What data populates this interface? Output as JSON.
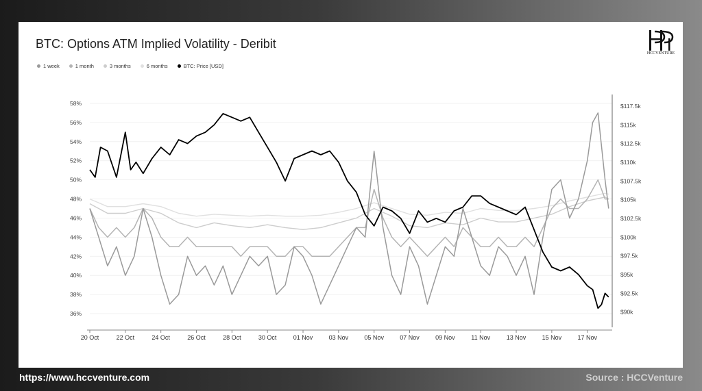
{
  "footer": {
    "url": "https://www.hccventure.com",
    "source": "Source : HCCVenture"
  },
  "logo": {
    "text": "HCCVENTURE"
  },
  "colors": {
    "background_left": "#1b1b1b",
    "background_right": "#8a8a8a",
    "card": "#ffffff",
    "one_week": "#9a9a9a",
    "one_month": "#b4b4b4",
    "three_months": "#cdcdcd",
    "six_months": "#e0e0e0",
    "price": "#000000"
  },
  "chart_data": {
    "type": "line",
    "title": "BTC: Options ATM Implied Volatility - Deribit",
    "legend": [
      "1 week",
      "1 month",
      "3 months",
      "6 months",
      "BTC: Price [USD]"
    ],
    "legend_position": "top-left",
    "grid": true,
    "x_ticks": [
      "20 Oct",
      "22 Oct",
      "24 Oct",
      "26 Oct",
      "28 Oct",
      "30 Oct",
      "01 Nov",
      "03 Nov",
      "05 Nov",
      "07 Nov",
      "09 Nov",
      "11 Nov",
      "13 Nov",
      "15 Nov",
      "17 Nov"
    ],
    "x_range": [
      0,
      29.4
    ],
    "y_left": {
      "ticks": [
        "58%",
        "56%",
        "54%",
        "52%",
        "50%",
        "48%",
        "46%",
        "44%",
        "42%",
        "40%",
        "38%",
        "36%"
      ],
      "range": [
        35,
        58.5
      ],
      "unit": "%"
    },
    "y_right": {
      "ticks": [
        "$117.5k",
        "$115k",
        "$112.5k",
        "$110k",
        "$107.5k",
        "$105k",
        "$102.5k",
        "$100k",
        "$97.5k",
        "$95k",
        "$92.5k",
        "$90k"
      ],
      "range": [
        88.5,
        118.5
      ],
      "unit": "k USD"
    },
    "series": [
      {
        "name": "1 week",
        "axis": "left",
        "x": [
          0,
          0.5,
          1,
          1.5,
          2,
          2.5,
          3,
          3.5,
          4,
          4.5,
          5,
          5.5,
          6,
          6.5,
          7,
          7.5,
          8,
          8.5,
          9,
          9.5,
          10,
          10.5,
          11,
          11.5,
          12,
          12.5,
          13,
          13.5,
          14,
          14.5,
          15,
          15.5,
          16,
          16.5,
          17,
          17.5,
          18,
          18.5,
          19,
          19.5,
          20,
          20.5,
          21,
          21.5,
          22,
          22.5,
          23,
          23.5,
          24,
          24.5,
          25,
          25.5,
          26,
          26.5,
          27,
          27.5,
          28,
          28.3,
          28.6,
          29,
          29.2
        ],
        "values": [
          47,
          44,
          41,
          43,
          40,
          42,
          47,
          44,
          40,
          37,
          38,
          42,
          40,
          41,
          39,
          41,
          38,
          40,
          42,
          41,
          42,
          38,
          39,
          43,
          42,
          40,
          37,
          39,
          41,
          43,
          45,
          44,
          53,
          45,
          40,
          38,
          43,
          41,
          37,
          40,
          43,
          42,
          47,
          44,
          41,
          40,
          43,
          42,
          40,
          42,
          38,
          44,
          49,
          50,
          46,
          48,
          52,
          56,
          57,
          50,
          47
        ]
      },
      {
        "name": "1 month",
        "axis": "left",
        "x": [
          0,
          0.5,
          1,
          1.5,
          2,
          2.5,
          3,
          3.5,
          4,
          4.5,
          5,
          5.5,
          6,
          6.5,
          7,
          7.5,
          8,
          8.5,
          9,
          9.5,
          10,
          10.5,
          11,
          11.5,
          12,
          12.5,
          13,
          13.5,
          14,
          14.5,
          15,
          15.5,
          16,
          16.5,
          17,
          17.5,
          18,
          18.5,
          19,
          19.5,
          20,
          20.5,
          21,
          21.5,
          22,
          22.5,
          23,
          23.5,
          24,
          24.5,
          25,
          25.5,
          26,
          26.5,
          27,
          27.5,
          28,
          28.3,
          28.6,
          29,
          29.2
        ],
        "values": [
          47,
          45,
          44,
          45,
          44,
          45,
          47,
          46,
          44,
          43,
          43,
          44,
          43,
          43,
          43,
          43,
          43,
          42,
          43,
          43,
          43,
          42,
          42,
          43,
          43,
          42,
          42,
          42,
          43,
          44,
          45,
          45,
          49,
          46,
          44,
          43,
          44,
          43,
          42,
          43,
          44,
          43,
          45,
          44,
          43,
          43,
          44,
          43,
          43,
          44,
          43,
          45,
          47,
          48,
          47,
          47,
          48,
          49,
          50,
          48,
          48
        ]
      },
      {
        "name": "3 months",
        "axis": "left",
        "x": [
          0,
          1,
          2,
          3,
          4,
          5,
          6,
          7,
          8,
          9,
          10,
          11,
          12,
          13,
          14,
          15,
          16,
          17,
          18,
          19,
          20,
          21,
          22,
          23,
          24,
          25,
          26,
          27,
          28,
          29,
          29.2
        ],
        "values": [
          47.5,
          46.5,
          46.5,
          47,
          46.5,
          45.5,
          45,
          45.5,
          45.2,
          45,
          45.3,
          45,
          44.8,
          45,
          45.5,
          46,
          47,
          46.2,
          45.2,
          45,
          45.5,
          45.3,
          46,
          45.6,
          45.6,
          46,
          46.4,
          47.2,
          47.8,
          48.2,
          48
        ]
      },
      {
        "name": "6 months",
        "axis": "left",
        "x": [
          0,
          1,
          2,
          3,
          4,
          5,
          6,
          7,
          8,
          9,
          10,
          11,
          12,
          13,
          14,
          15,
          16,
          17,
          18,
          19,
          20,
          21,
          22,
          23,
          24,
          25,
          26,
          27,
          28,
          29,
          29.2
        ],
        "values": [
          48,
          47.2,
          47.2,
          47.5,
          47.2,
          46.5,
          46.2,
          46.4,
          46.3,
          46.2,
          46.3,
          46.2,
          46.2,
          46.3,
          46.6,
          47,
          47.6,
          47,
          46.4,
          46.3,
          46.6,
          46.5,
          47,
          46.8,
          46.8,
          47,
          47.3,
          47.8,
          48.2,
          48.6,
          48.5
        ]
      },
      {
        "name": "BTC: Price [USD]",
        "axis": "right",
        "x": [
          0,
          0.3,
          0.6,
          1,
          1.5,
          2,
          2.3,
          2.6,
          3,
          3.5,
          4,
          4.5,
          5,
          5.5,
          6,
          6.5,
          7,
          7.5,
          8,
          8.5,
          9,
          9.5,
          10,
          10.5,
          11,
          11.5,
          12,
          12.5,
          13,
          13.5,
          14,
          14.5,
          15,
          15.5,
          16,
          16.5,
          17,
          17.5,
          18,
          18.5,
          19,
          19.5,
          20,
          20.5,
          21,
          21.5,
          22,
          22.5,
          23,
          23.5,
          24,
          24.5,
          25,
          25.5,
          26,
          26.5,
          27,
          27.5,
          28,
          28.3,
          28.6,
          28.8,
          29,
          29.2
        ],
        "values": [
          109,
          108,
          112,
          111.5,
          108,
          114,
          109,
          110,
          108.5,
          110.5,
          112,
          111,
          113,
          112.5,
          113.5,
          114,
          115,
          116.5,
          116,
          115.5,
          116,
          114,
          112,
          110,
          107.5,
          110.5,
          111,
          111.5,
          111,
          111.5,
          110,
          107.5,
          106,
          103,
          101.5,
          104,
          103.5,
          102.5,
          100.5,
          103.5,
          102,
          102.5,
          102,
          103.5,
          104,
          105.5,
          105.5,
          104.5,
          104,
          103.5,
          103,
          104,
          101,
          98,
          96,
          95.5,
          96,
          95,
          93.5,
          93,
          90.5,
          91,
          92.5,
          92
        ]
      }
    ]
  }
}
